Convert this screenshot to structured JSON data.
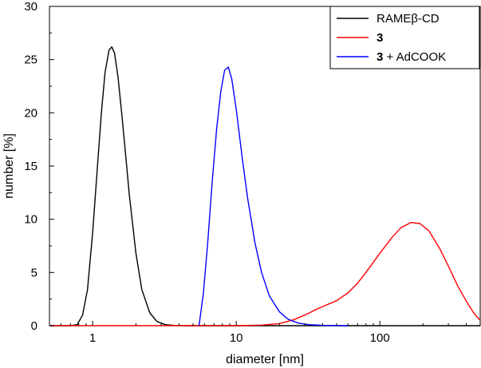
{
  "chart_data": {
    "type": "line",
    "xlabel": "diameter [nm]",
    "ylabel": "number [%]",
    "x_scale": "log",
    "xlim": [
      0.5,
      500
    ],
    "ylim": [
      0,
      30
    ],
    "x_ticks": [
      {
        "value": 1,
        "label": "1"
      },
      {
        "value": 10,
        "label": "10"
      },
      {
        "value": 100,
        "label": "100"
      }
    ],
    "y_ticks": [
      {
        "value": 0,
        "label": "0"
      },
      {
        "value": 5,
        "label": "5"
      },
      {
        "value": 10,
        "label": "10"
      },
      {
        "value": 15,
        "label": "15"
      },
      {
        "value": 20,
        "label": "20"
      },
      {
        "value": 25,
        "label": "25"
      },
      {
        "value": 30,
        "label": "30"
      }
    ],
    "legend_position": "top-right",
    "grid": false,
    "series": [
      {
        "name": "RAMEβ-CD",
        "name_parts": [
          {
            "text": "RAMEβ-CD",
            "bold": false
          }
        ],
        "color": "#000000",
        "x": [
          0.5,
          0.7,
          0.78,
          0.85,
          0.92,
          1.0,
          1.08,
          1.15,
          1.22,
          1.3,
          1.36,
          1.42,
          1.5,
          1.6,
          1.7,
          1.8,
          2.0,
          2.2,
          2.5,
          2.8,
          3.2,
          3.7,
          4.5,
          6,
          500
        ],
        "y": [
          0,
          0,
          0.1,
          1.0,
          3.4,
          8.8,
          15.0,
          20.0,
          23.8,
          25.9,
          26.2,
          25.6,
          23.4,
          19.7,
          15.9,
          12.3,
          6.8,
          3.4,
          1.2,
          0.4,
          0.1,
          0.02,
          0,
          0,
          0
        ]
      },
      {
        "name": "3",
        "name_parts": [
          {
            "text": "3",
            "bold": true
          }
        ],
        "color": "#ff0000",
        "x": [
          0.5,
          10,
          15,
          20,
          25,
          30,
          35,
          40,
          50,
          60,
          70,
          80,
          100,
          120,
          140,
          165,
          190,
          220,
          260,
          300,
          350,
          400,
          450,
          500
        ],
        "y": [
          0,
          0,
          0.05,
          0.2,
          0.55,
          1.0,
          1.45,
          1.8,
          2.35,
          3.1,
          4.0,
          5.0,
          6.8,
          8.2,
          9.2,
          9.7,
          9.6,
          8.9,
          7.3,
          5.6,
          3.7,
          2.3,
          1.2,
          0.5
        ]
      },
      {
        "name": "3 + AdCOOK",
        "name_parts": [
          {
            "text": "3",
            "bold": true
          },
          {
            "text": " + AdCOOK",
            "bold": false
          }
        ],
        "color": "#0000ff",
        "x": [
          5.5,
          5.9,
          6.3,
          6.8,
          7.3,
          7.8,
          8.3,
          8.8,
          9.3,
          10,
          11,
          12,
          13.5,
          15,
          17,
          20,
          23,
          27,
          32,
          40,
          50,
          60
        ],
        "y": [
          0,
          3.0,
          7.5,
          13.5,
          18.5,
          22.0,
          24.0,
          24.3,
          23.2,
          20.3,
          15.8,
          12.0,
          7.8,
          5.0,
          2.8,
          1.3,
          0.6,
          0.25,
          0.1,
          0.03,
          0.01,
          0
        ]
      }
    ]
  }
}
